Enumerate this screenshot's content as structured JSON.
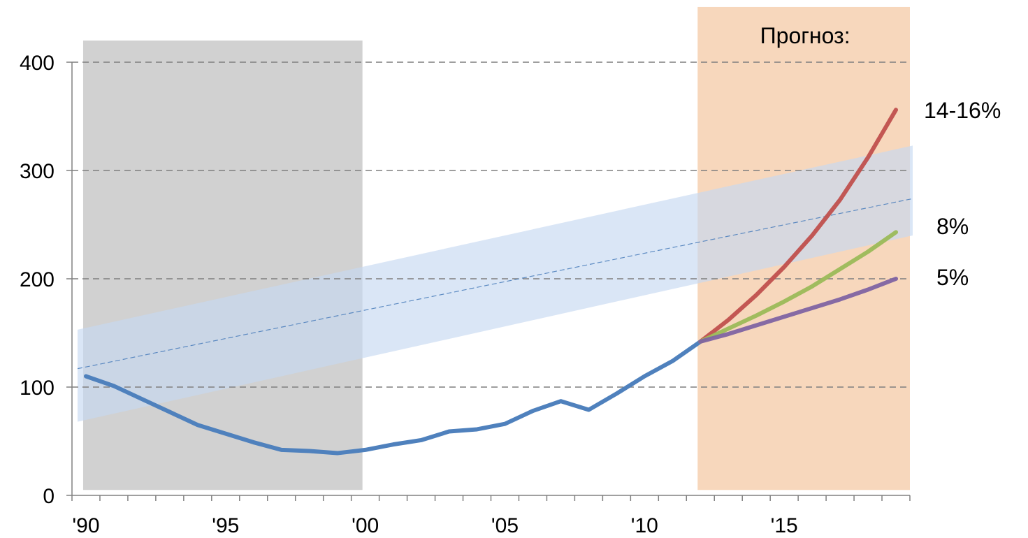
{
  "chart_data": {
    "type": "line",
    "ylim": [
      0,
      400
    ],
    "xlim": [
      1989.5,
      2019.5
    ],
    "y_ticks": [
      {
        "value": 0,
        "label": "0"
      },
      {
        "value": 100,
        "label": "100"
      },
      {
        "value": 200,
        "label": "200"
      },
      {
        "value": 300,
        "label": "300"
      },
      {
        "value": 400,
        "label": "400"
      }
    ],
    "x_ticks": [
      {
        "value": 1990,
        "label": "'90"
      },
      {
        "value": 1995,
        "label": "'95"
      },
      {
        "value": 2000,
        "label": "'00"
      },
      {
        "value": 2005,
        "label": "'05"
      },
      {
        "value": 2010,
        "label": "'10"
      },
      {
        "value": 2015,
        "label": "'15"
      }
    ],
    "grid": true,
    "series": [
      {
        "color": "#4f81bd",
        "x": [
          1990,
          1991,
          1992,
          1993,
          1994,
          1995,
          1996,
          1997,
          1998,
          1999,
          2000,
          2001,
          2002,
          2003,
          2004,
          2005,
          2006,
          2007,
          2008,
          2009,
          2010,
          2011,
          2012
        ],
        "values": [
          110,
          101,
          89,
          77,
          65,
          57,
          49,
          42,
          41,
          39,
          42,
          47,
          51,
          59,
          61,
          66,
          78,
          87,
          79,
          94,
          110,
          124,
          142
        ]
      },
      {
        "label": "14-16%",
        "color": "#c0504d",
        "x": [
          2012,
          2013,
          2014,
          2015,
          2016,
          2017,
          2018,
          2019
        ],
        "values": [
          142,
          162,
          185,
          211,
          240,
          273,
          312,
          356
        ]
      },
      {
        "label": "8%",
        "color": "#9bbb59",
        "x": [
          2012,
          2013,
          2014,
          2015,
          2016,
          2017,
          2018,
          2019
        ],
        "values": [
          142,
          154,
          166,
          179,
          193,
          209,
          225,
          243
        ]
      },
      {
        "label": "5%",
        "color": "#8064a2",
        "x": [
          2012,
          2013,
          2014,
          2015,
          2016,
          2017,
          2018,
          2019
        ],
        "values": [
          142,
          149,
          157,
          165,
          173,
          181,
          190,
          200
        ]
      }
    ],
    "trend": {
      "color": "#4f81bd",
      "x": [
        1989.7,
        2019.6
      ],
      "values": [
        117,
        274
      ]
    },
    "trend_band": {
      "color": "#c6d9f1",
      "x": [
        1989.7,
        2019.6
      ],
      "upper": [
        153,
        323
      ],
      "lower": [
        68,
        240
      ]
    },
    "shaded_regions": [
      {
        "from": 1989.9,
        "to": 1999.9,
        "color": "#bfbfbf",
        "ymin": 5,
        "ymax": 420
      },
      {
        "from": 2011.9,
        "to": 2019.5,
        "color": "#f4c9a6",
        "ymin": 5,
        "ymax": 451,
        "label": "Прогноз:"
      }
    ]
  }
}
